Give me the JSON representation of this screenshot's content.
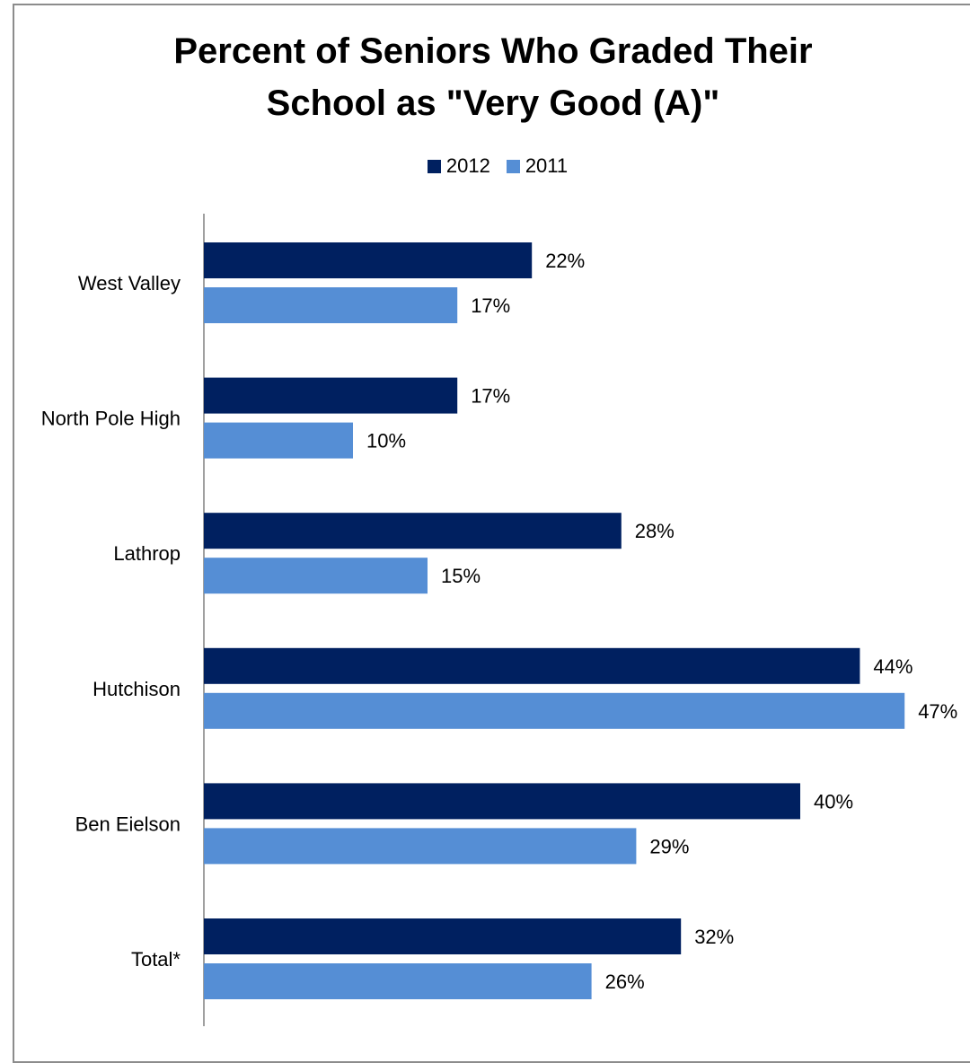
{
  "chart_data": {
    "type": "bar",
    "orientation": "horizontal",
    "title": "Percent of Seniors Who Graded Their School as \"Very Good (A)\"",
    "title_lines": [
      "Percent of Seniors Who Graded Their",
      "School as \"Very Good (A)\""
    ],
    "xlabel": "",
    "ylabel": "",
    "categories": [
      "West Valley",
      "North Pole High",
      "Lathrop",
      "Hutchison",
      "Ben Eielson",
      "Total*"
    ],
    "series": [
      {
        "name": "2012",
        "color": "#002060",
        "values": [
          22,
          17,
          28,
          44,
          40,
          32
        ],
        "labels": [
          "22%",
          "17%",
          "28%",
          "44%",
          "40%",
          "32%"
        ]
      },
      {
        "name": "2011",
        "color": "#558ED5",
        "values": [
          17,
          10,
          15,
          47,
          29,
          26
        ],
        "labels": [
          "17%",
          "10%",
          "15%",
          "47%",
          "29%",
          "26%"
        ]
      }
    ],
    "xlim": [
      0,
      50
    ],
    "grid": false,
    "legend_position": "top-center"
  }
}
